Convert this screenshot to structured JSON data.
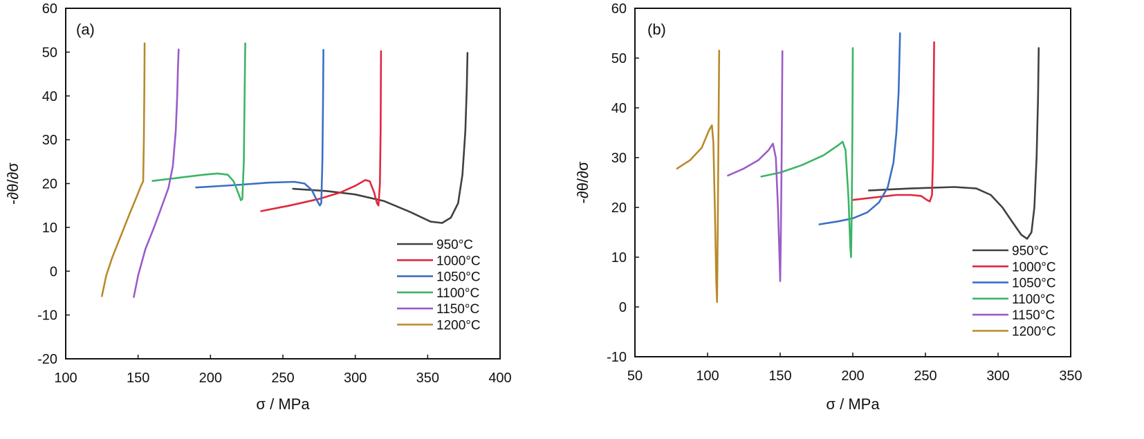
{
  "chart_data": [
    {
      "type": "line",
      "panel_label": "(a)",
      "xlabel": "σ / MPa",
      "ylabel": "-∂θ/∂σ",
      "xlim": [
        100,
        400
      ],
      "ylim": [
        -20,
        60
      ],
      "xticks": [
        "100",
        "150",
        "200",
        "250",
        "300",
        "350",
        "400"
      ],
      "yticks": [
        "-20",
        "-10",
        "0",
        "10",
        "20",
        "30",
        "40",
        "50",
        "60"
      ],
      "legend_position": "bottom-right",
      "series": [
        {
          "name": "950°C",
          "color": "#404040",
          "points": [
            [
              257,
              18.8
            ],
            [
              280,
              18.3
            ],
            [
              300,
              17.5
            ],
            [
              320,
              16
            ],
            [
              338,
              13.5
            ],
            [
              352,
              11.3
            ],
            [
              360,
              11
            ],
            [
              366,
              12.2
            ],
            [
              371,
              15.5
            ],
            [
              374,
              22
            ],
            [
              376,
              32
            ],
            [
              377,
              42
            ],
            [
              377.5,
              49.8
            ]
          ]
        },
        {
          "name": "1000°C",
          "color": "#e0273d",
          "points": [
            [
              235,
              13.7
            ],
            [
              255,
              15
            ],
            [
              275,
              16.5
            ],
            [
              290,
              18
            ],
            [
              300,
              19.5
            ],
            [
              307,
              20.8
            ],
            [
              310,
              20.5
            ],
            [
              313,
              18
            ],
            [
              315,
              15.5
            ],
            [
              316,
              15
            ],
            [
              317,
              20
            ],
            [
              317.5,
              32
            ],
            [
              317.8,
              50.2
            ]
          ]
        },
        {
          "name": "1050°C",
          "color": "#3a6fc4",
          "points": [
            [
              190,
              19.1
            ],
            [
              215,
              19.6
            ],
            [
              240,
              20.2
            ],
            [
              258,
              20.4
            ],
            [
              265,
              20
            ],
            [
              270,
              18.5
            ],
            [
              273,
              16.5
            ],
            [
              275.5,
              15
            ],
            [
              276.5,
              15.5
            ],
            [
              277.3,
              25
            ],
            [
              277.7,
              38
            ],
            [
              278,
              50.5
            ]
          ]
        },
        {
          "name": "1100°C",
          "color": "#3bb465",
          "points": [
            [
              160,
              20.6
            ],
            [
              180,
              21.4
            ],
            [
              195,
              22
            ],
            [
              205,
              22.3
            ],
            [
              212,
              22
            ],
            [
              216,
              20.5
            ],
            [
              219,
              18
            ],
            [
              221,
              16.2
            ],
            [
              222,
              16.5
            ],
            [
              223,
              25
            ],
            [
              223.5,
              38
            ],
            [
              224,
              52
            ]
          ]
        },
        {
          "name": "1150°C",
          "color": "#9a5cc9",
          "points": [
            [
              147,
              -5.9
            ],
            [
              150,
              -1
            ],
            [
              155,
              5
            ],
            [
              161,
              10
            ],
            [
              166,
              14.5
            ],
            [
              171,
              19
            ],
            [
              174,
              24
            ],
            [
              176,
              32
            ],
            [
              177,
              40
            ],
            [
              177.5,
              46
            ],
            [
              178,
              50.6
            ]
          ]
        },
        {
          "name": "1200°C",
          "color": "#b88a2a",
          "points": [
            [
              125,
              -5.7
            ],
            [
              128,
              -1
            ],
            [
              132,
              3
            ],
            [
              138,
              8
            ],
            [
              144,
              13
            ],
            [
              149,
              17
            ],
            [
              152,
              19.5
            ],
            [
              153.5,
              20.5
            ],
            [
              154,
              30
            ],
            [
              154.3,
              42
            ],
            [
              154.5,
              52
            ]
          ]
        }
      ]
    },
    {
      "type": "line",
      "panel_label": "(b)",
      "xlabel": "σ / MPa",
      "ylabel": "-∂θ/∂σ",
      "xlim": [
        50,
        350
      ],
      "ylim": [
        -10,
        60
      ],
      "xticks": [
        "50",
        "100",
        "150",
        "200",
        "250",
        "300",
        "350"
      ],
      "yticks": [
        "-10",
        "0",
        "10",
        "20",
        "30",
        "40",
        "50",
        "60"
      ],
      "legend_position": "bottom-right",
      "series": [
        {
          "name": "950°C",
          "color": "#404040",
          "points": [
            [
              211,
              23.4
            ],
            [
              240,
              23.8
            ],
            [
              270,
              24.1
            ],
            [
              285,
              23.8
            ],
            [
              295,
              22.5
            ],
            [
              303,
              20
            ],
            [
              310,
              17
            ],
            [
              316,
              14.5
            ],
            [
              320,
              13.7
            ],
            [
              323,
              15
            ],
            [
              325,
              20
            ],
            [
              326.5,
              30
            ],
            [
              327.5,
              42
            ],
            [
              328,
              52
            ]
          ]
        },
        {
          "name": "1000°C",
          "color": "#e0273d",
          "points": [
            [
              200,
              21.5
            ],
            [
              215,
              22
            ],
            [
              230,
              22.5
            ],
            [
              240,
              22.5
            ],
            [
              247,
              22.3
            ],
            [
              251,
              21.5
            ],
            [
              253,
              21.2
            ],
            [
              254.5,
              22.5
            ],
            [
              255.2,
              30
            ],
            [
              255.6,
              42
            ],
            [
              256,
              53.2
            ]
          ]
        },
        {
          "name": "1050°C",
          "color": "#3a6fc4",
          "points": [
            [
              177,
              16.6
            ],
            [
              190,
              17.2
            ],
            [
              200,
              17.8
            ],
            [
              210,
              19
            ],
            [
              218,
              21
            ],
            [
              224,
              24
            ],
            [
              228,
              29
            ],
            [
              230,
              35
            ],
            [
              231.5,
              43
            ],
            [
              232.5,
              55
            ]
          ]
        },
        {
          "name": "1100°C",
          "color": "#3bb465",
          "points": [
            [
              137,
              26.2
            ],
            [
              150,
              27
            ],
            [
              165,
              28.5
            ],
            [
              180,
              30.5
            ],
            [
              190,
              32.5
            ],
            [
              193,
              33.2
            ],
            [
              195,
              31.5
            ],
            [
              197,
              22
            ],
            [
              198.3,
              12
            ],
            [
              198.8,
              10
            ],
            [
              199.3,
              20
            ],
            [
              199.7,
              35
            ],
            [
              200,
              52
            ]
          ]
        },
        {
          "name": "1150°C",
          "color": "#9a5cc9",
          "points": [
            [
              114,
              26.4
            ],
            [
              125,
              27.8
            ],
            [
              135,
              29.5
            ],
            [
              142,
              31.5
            ],
            [
              145,
              32.8
            ],
            [
              147,
              30
            ],
            [
              148.5,
              20
            ],
            [
              149.5,
              10
            ],
            [
              150,
              5.2
            ],
            [
              150.5,
              15
            ],
            [
              151,
              30
            ],
            [
              151.3,
              42
            ],
            [
              151.5,
              51.4
            ]
          ]
        },
        {
          "name": "1200°C",
          "color": "#b88a2a",
          "points": [
            [
              79,
              27.8
            ],
            [
              88,
              29.5
            ],
            [
              96,
              32
            ],
            [
              101,
              35.5
            ],
            [
              103,
              36.5
            ],
            [
              104,
              33
            ],
            [
              105,
              20
            ],
            [
              106,
              5
            ],
            [
              106.5,
              1
            ],
            [
              107,
              15
            ],
            [
              107.5,
              35
            ],
            [
              108,
              51.5
            ]
          ]
        }
      ]
    }
  ]
}
